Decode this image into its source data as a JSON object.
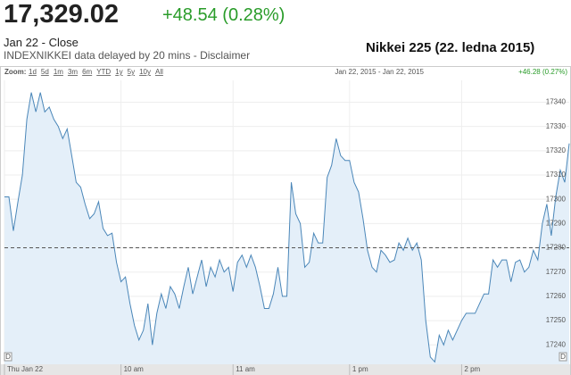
{
  "header": {
    "price": "17,329.02",
    "change": "+48.54 (0.28%)",
    "date_label": "Jan 22 - Close",
    "source_note": "INDEXNIKKEI data delayed by 20 mins - Disclaimer"
  },
  "chart_data": {
    "type": "line",
    "title": "Nikkei 225 (22. ledna 2015)",
    "zoom_label": "Zoom:",
    "zoom_options": [
      "1d",
      "5d",
      "1m",
      "3m",
      "6m",
      "YTD",
      "1y",
      "5y",
      "10y",
      "All"
    ],
    "range_label": "Jan 22, 2015 - Jan 22, 2015",
    "range_change": "+46.28 (0.27%)",
    "flag_labels": [
      "D",
      "D"
    ],
    "x": [
      0,
      1,
      2,
      3,
      4,
      5,
      6,
      7,
      8,
      9,
      10,
      11,
      12,
      13,
      14,
      15,
      16,
      17,
      18,
      19,
      20,
      21,
      22,
      23,
      24,
      25,
      26,
      27,
      28,
      29,
      30,
      31,
      32,
      33,
      34,
      35,
      36,
      37,
      38,
      39,
      40,
      41,
      42,
      43,
      44,
      45,
      46,
      47,
      48,
      49,
      50,
      51,
      52,
      53,
      54,
      55,
      56,
      57,
      58,
      59,
      60,
      61,
      62,
      63,
      64,
      65,
      66,
      67,
      68,
      69,
      70,
      71,
      72,
      73,
      74,
      75,
      76,
      77,
      78,
      79,
      80,
      81,
      82,
      83,
      84,
      85,
      86,
      87,
      88,
      89,
      90,
      91,
      92,
      93,
      94,
      95,
      96,
      97,
      98,
      99,
      100,
      101,
      102,
      103,
      104,
      105,
      106,
      107,
      108,
      109,
      110,
      111,
      112,
      113,
      114,
      115,
      116,
      117,
      118,
      119,
      120,
      121,
      122,
      123,
      124,
      125,
      126
    ],
    "series": [
      {
        "color": "#4a86b8",
        "fill": "#e4eff9",
        "values": [
          17301,
          17301,
          17287,
          17299,
          17310,
          17333,
          17344,
          17336,
          17344,
          17336,
          17338,
          17333,
          17330,
          17325,
          17329,
          17318,
          17307,
          17305,
          17298,
          17292,
          17294,
          17299,
          17288,
          17285,
          17286,
          17274,
          17266,
          17268,
          17257,
          17248,
          17242,
          17246,
          17257,
          17240,
          17253,
          17261,
          17255,
          17264,
          17261,
          17255,
          17264,
          17272,
          17261,
          17268,
          17275,
          17264,
          17272,
          17268,
          17275,
          17270,
          17272,
          17262,
          17274,
          17277,
          17272,
          17277,
          17272,
          17264,
          17255,
          17255,
          17261,
          17272,
          17260,
          17260,
          17307,
          17294,
          17290,
          17272,
          17274,
          17286,
          17282,
          17282,
          17309,
          17314,
          17325,
          17318,
          17316,
          17316,
          17307,
          17303,
          17292,
          17279,
          17272,
          17270,
          17279,
          17277,
          17274,
          17275,
          17282,
          17279,
          17284,
          17279,
          17282,
          17275,
          17250,
          17235,
          17233,
          17244,
          17240,
          17246,
          17242,
          17246,
          17250,
          17253,
          17253,
          17253,
          17257,
          17261,
          17261,
          17275,
          17272,
          17275,
          17275,
          17266,
          17274,
          17275,
          17270,
          17272,
          17279,
          17275,
          17290,
          17298,
          17285,
          17301,
          17312,
          17307,
          17323
        ]
      }
    ],
    "dashed_line_value": 17280,
    "xlim": [
      0,
      126
    ],
    "xticks": [
      {
        "value": 0,
        "label": "Thu Jan 22"
      },
      {
        "value": 26,
        "label": "10 am"
      },
      {
        "value": 51,
        "label": "11 am"
      },
      {
        "value": 77,
        "label": "1 pm"
      },
      {
        "value": 102,
        "label": "2 pm"
      }
    ],
    "ylim": [
      17232,
      17349
    ],
    "yticks": [
      17240,
      17250,
      17260,
      17270,
      17280,
      17290,
      17300,
      17310,
      17320,
      17330,
      17340
    ],
    "grid": true
  }
}
